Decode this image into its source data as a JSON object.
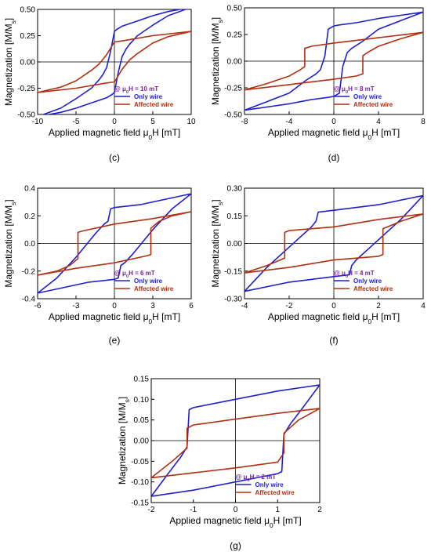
{
  "chart_data": [
    {
      "type": "line",
      "panel_label": "(c)",
      "xlabel": "Applied magnetic field μ0H [mT]",
      "ylabel": "Magnetization [M/Ms]",
      "xlim": [
        -10,
        10
      ],
      "ylim": [
        -0.5,
        0.5
      ],
      "xticks": [
        -10,
        -5,
        0,
        5,
        10
      ],
      "yticks": [
        -0.5,
        -0.25,
        0.0,
        0.25,
        0.5
      ],
      "ytick_labels": [
        "-0.50",
        "-0.25",
        "0.00",
        "0.25",
        "0.50"
      ],
      "annotation": "@ μ0H = 10 mT",
      "legend_position": "bottom-right",
      "series": [
        {
          "name": "Only wire",
          "color": "#1f1fd0",
          "x": [
            10,
            7,
            5,
            3,
            1,
            0.3,
            0,
            -0.5,
            -1,
            -1.5,
            -2,
            -3,
            -5,
            -7,
            -10,
            -7,
            -5,
            -3,
            -1,
            -0.3,
            0,
            0.5,
            1,
            1.5,
            2,
            3,
            5,
            7,
            10
          ],
          "y": [
            0.52,
            0.48,
            0.44,
            0.39,
            0.34,
            0.31,
            0.29,
            0.1,
            -0.05,
            -0.12,
            -0.17,
            -0.25,
            -0.35,
            -0.44,
            -0.52,
            -0.48,
            -0.44,
            -0.39,
            -0.34,
            -0.31,
            -0.29,
            -0.1,
            0.05,
            0.12,
            0.17,
            0.25,
            0.35,
            0.44,
            0.52
          ]
        },
        {
          "name": "Affected wire",
          "color": "#b03010",
          "x": [
            10,
            5,
            1,
            0,
            -1,
            -2,
            -3,
            -5,
            -7,
            -10,
            -5,
            -1,
            0,
            1,
            2,
            3,
            5,
            7,
            10
          ],
          "y": [
            0.29,
            0.25,
            0.2,
            0.19,
            0.07,
            -0.02,
            -0.08,
            -0.18,
            -0.24,
            -0.29,
            -0.25,
            -0.2,
            -0.19,
            -0.07,
            0.02,
            0.08,
            0.18,
            0.24,
            0.29
          ]
        }
      ]
    },
    {
      "type": "line",
      "panel_label": "(d)",
      "xlabel": "Applied magnetic field μ0H [mT]",
      "ylabel": "Magnetization [M/Ms]",
      "xlim": [
        -8,
        8
      ],
      "ylim": [
        -0.5,
        0.5
      ],
      "xticks": [
        -8,
        -4,
        0,
        4,
        8
      ],
      "yticks": [
        -0.5,
        -0.25,
        0.0,
        0.25,
        0.5
      ],
      "ytick_labels": [
        "-0.50",
        "-0.25",
        "0.00",
        "0.25",
        "0.50"
      ],
      "annotation": "@ μ0H = 8 mT",
      "legend_position": "bottom-right",
      "series": [
        {
          "name": "Only wire",
          "color": "#1f1fd0",
          "x": [
            8,
            6,
            4,
            2,
            0.5,
            0,
            -0.5,
            -0.8,
            -1.2,
            -1.6,
            -2.5,
            -4,
            -6,
            -8,
            -6,
            -4,
            -2,
            -0.5,
            0,
            0.5,
            0.8,
            1.2,
            1.6,
            2.5,
            4,
            6,
            8
          ],
          "y": [
            0.46,
            0.43,
            0.4,
            0.36,
            0.34,
            0.33,
            0.3,
            0.05,
            -0.08,
            -0.12,
            -0.18,
            -0.3,
            -0.38,
            -0.46,
            -0.43,
            -0.4,
            -0.36,
            -0.34,
            -0.33,
            -0.3,
            -0.05,
            0.08,
            0.12,
            0.18,
            0.3,
            0.38,
            0.46
          ]
        },
        {
          "name": "Affected wire",
          "color": "#b03010",
          "x": [
            8,
            4,
            0,
            -2,
            -2.6,
            -2.6,
            -3,
            -4,
            -6,
            -8,
            -4,
            0,
            2,
            2.6,
            2.6,
            3,
            4,
            6,
            8
          ],
          "y": [
            0.27,
            0.22,
            0.17,
            0.14,
            0.12,
            -0.05,
            -0.08,
            -0.14,
            -0.21,
            -0.27,
            -0.22,
            -0.17,
            -0.14,
            -0.12,
            0.05,
            0.08,
            0.14,
            0.21,
            0.27
          ]
        }
      ]
    },
    {
      "type": "line",
      "panel_label": "(e)",
      "xlabel": "Applied magnetic field μ0H [mT]",
      "ylabel": "Magnetization [M/Ms]",
      "xlim": [
        -6,
        6
      ],
      "ylim": [
        -0.4,
        0.4
      ],
      "xticks": [
        -6,
        -3,
        0,
        3,
        6
      ],
      "yticks": [
        -0.4,
        -0.2,
        0.0,
        0.2,
        0.4
      ],
      "ytick_labels": [
        "-0.4",
        "-0.2",
        "0.0",
        "0.2",
        "0.4"
      ],
      "annotation": "@ μ0H = 6 mT",
      "legend_position": "bottom-right",
      "series": [
        {
          "name": "Only wire",
          "color": "#1f1fd0",
          "x": [
            6,
            4,
            2,
            0,
            -0.3,
            -0.5,
            -0.8,
            -1.5,
            -3,
            -4.5,
            -6,
            -4,
            -2,
            0,
            0.3,
            0.5,
            0.8,
            1.5,
            3,
            4.5,
            6
          ],
          "y": [
            0.36,
            0.32,
            0.28,
            0.26,
            0.25,
            0.16,
            0.14,
            0.07,
            -0.1,
            -0.25,
            -0.36,
            -0.32,
            -0.28,
            -0.26,
            -0.25,
            -0.16,
            -0.14,
            -0.07,
            0.1,
            0.25,
            0.36
          ]
        },
        {
          "name": "Affected wire",
          "color": "#b03010",
          "x": [
            6,
            3,
            0,
            -2.5,
            -2.85,
            -2.85,
            -3.5,
            -4.5,
            -6,
            -3,
            0,
            2.5,
            2.85,
            2.85,
            3.5,
            4.5,
            6
          ],
          "y": [
            0.23,
            0.18,
            0.14,
            0.09,
            0.08,
            -0.11,
            -0.16,
            -0.2,
            -0.23,
            -0.18,
            -0.14,
            -0.09,
            -0.08,
            0.11,
            0.16,
            0.2,
            0.23
          ]
        }
      ]
    },
    {
      "type": "line",
      "panel_label": "(f)",
      "xlabel": "Applied magnetic field μ0H [mT]",
      "ylabel": "Magnetization [M/Ms]",
      "xlim": [
        -4,
        4
      ],
      "ylim": [
        -0.3,
        0.3
      ],
      "xticks": [
        -4,
        -2,
        0,
        2,
        4
      ],
      "yticks": [
        -0.3,
        -0.15,
        0.0,
        0.15,
        0.3
      ],
      "ytick_labels": [
        "-0.30",
        "-0.15",
        "0.00",
        "0.15",
        "0.30"
      ],
      "annotation": "@ μ0H = 4 mT",
      "legend_position": "bottom-right",
      "series": [
        {
          "name": "Only wire",
          "color": "#1f1fd0",
          "x": [
            4,
            2,
            0,
            -0.7,
            -0.8,
            -1,
            -2,
            -3,
            -4,
            -2,
            0,
            0.7,
            0.8,
            1,
            2,
            3,
            4
          ],
          "y": [
            0.26,
            0.21,
            0.18,
            0.17,
            0.12,
            0.09,
            -0.02,
            -0.13,
            -0.26,
            -0.21,
            -0.18,
            -0.17,
            -0.12,
            -0.09,
            0.02,
            0.13,
            0.26
          ]
        },
        {
          "name": "Affected wire",
          "color": "#b03010",
          "x": [
            4,
            2,
            0,
            -2,
            -2.2,
            -2.2,
            -3,
            -4,
            -2,
            0,
            2,
            2.2,
            2.2,
            3,
            4
          ],
          "y": [
            0.16,
            0.13,
            0.09,
            0.07,
            0.06,
            -0.08,
            -0.12,
            -0.16,
            -0.13,
            -0.09,
            -0.07,
            -0.06,
            0.08,
            0.12,
            0.16
          ]
        }
      ]
    },
    {
      "type": "line",
      "panel_label": "(g)",
      "xlabel": "Applied magnetic field μ0H [mT]",
      "ylabel": "Magnetization [M/Ms]",
      "xlim": [
        -2,
        2
      ],
      "ylim": [
        -0.15,
        0.15
      ],
      "xticks": [
        -2,
        -1,
        0,
        1,
        2
      ],
      "yticks": [
        -0.15,
        -0.1,
        -0.05,
        0.0,
        0.05,
        0.1,
        0.15
      ],
      "ytick_labels": [
        "-0.15",
        "-0.10",
        "-0.05",
        "0.00",
        "0.05",
        "0.10",
        "0.15"
      ],
      "annotation": "@ μ0H = 2 mT",
      "legend_position": "bottom-right",
      "series": [
        {
          "name": "Only wire",
          "color": "#1f1fd0",
          "x": [
            2,
            1,
            0,
            -1,
            -1.1,
            -1.15,
            -1.3,
            -1.6,
            -2,
            -1,
            0,
            1,
            1.1,
            1.15,
            1.3,
            1.6,
            2
          ],
          "y": [
            0.135,
            0.12,
            0.1,
            0.08,
            0.075,
            -0.015,
            -0.04,
            -0.08,
            -0.135,
            -0.12,
            -0.1,
            -0.08,
            -0.075,
            0.015,
            0.04,
            0.08,
            0.135
          ]
        },
        {
          "name": "Affected wire",
          "color": "#b03010",
          "x": [
            2,
            1,
            0,
            -1,
            -1.15,
            -1.15,
            -1.5,
            -2,
            -1,
            0,
            1,
            1.15,
            1.15,
            1.5,
            2
          ],
          "y": [
            0.078,
            0.066,
            0.052,
            0.038,
            0.03,
            -0.018,
            -0.05,
            -0.09,
            -0.078,
            -0.066,
            -0.052,
            -0.03,
            0.018,
            0.05,
            0.078
          ]
        }
      ]
    }
  ]
}
